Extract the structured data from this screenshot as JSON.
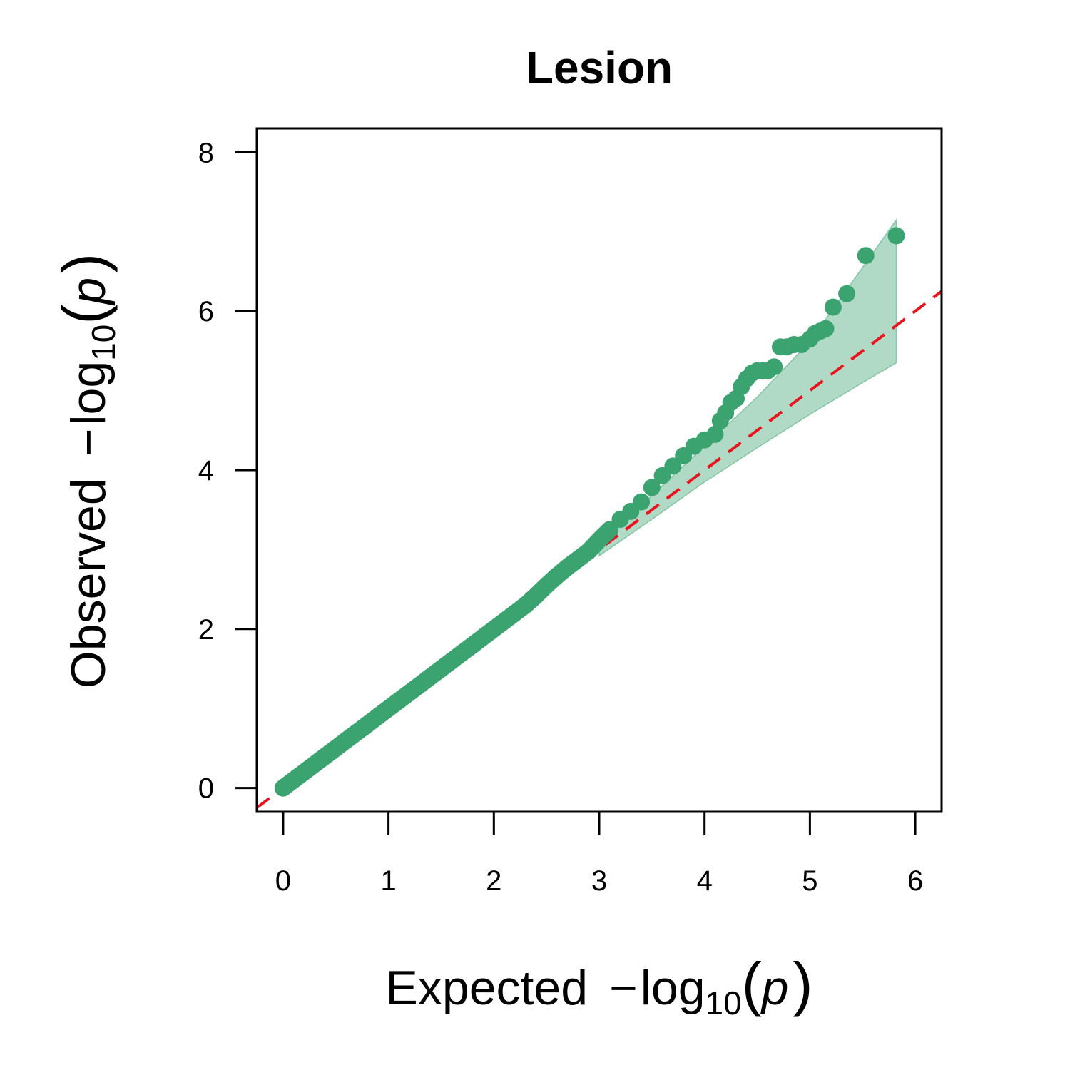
{
  "chart_data": {
    "type": "scatter",
    "title": "Lesion",
    "xlabel": {
      "prefix": "Expected",
      "minus": "−",
      "log": "log",
      "sub": "10",
      "open": "(",
      "var": "p",
      "close": ")"
    },
    "ylabel": {
      "prefix": "Observed",
      "minus": "−",
      "log": "log",
      "sub": "10",
      "open": "(",
      "var": "p",
      "close": ")"
    },
    "xlim": [
      -0.25,
      6.25
    ],
    "ylim": [
      -0.3,
      8.3
    ],
    "x_ticks": [
      0,
      1,
      2,
      3,
      4,
      5,
      6
    ],
    "x_tick_labels": [
      "0",
      "1",
      "2",
      "3",
      "4",
      "5",
      "6"
    ],
    "y_ticks": [
      0,
      2,
      4,
      6,
      8
    ],
    "y_tick_labels": [
      "0",
      "2",
      "4",
      "6",
      "8"
    ],
    "grid": false,
    "point_color": "#3aa36f",
    "band_color": "#3aa36f",
    "reference_line_color": "#e8141e",
    "reference_line": {
      "style": "dashed",
      "slope": 1,
      "intercept": 0
    },
    "confidence_band": {
      "x": [
        3.0,
        3.5,
        4.0,
        4.5,
        5.0,
        5.5,
        5.82
      ],
      "upper": [
        3.1,
        3.68,
        4.3,
        4.92,
        5.62,
        6.55,
        7.15
      ],
      "lower": [
        2.92,
        3.38,
        3.85,
        4.28,
        4.7,
        5.1,
        5.35
      ]
    },
    "series": [
      {
        "points": {
          "x": [
            0.0,
            0.1,
            0.2,
            0.3,
            0.4,
            0.5,
            0.6,
            0.7,
            0.8,
            0.9,
            1.0,
            1.1,
            1.2,
            1.3,
            1.4,
            1.5,
            1.6,
            1.7,
            1.8,
            1.9,
            2.0,
            2.1,
            2.2,
            2.3,
            2.4,
            2.5,
            2.6,
            2.7,
            2.8,
            2.9,
            3.0,
            3.1,
            3.2,
            3.3,
            3.4,
            3.5,
            3.6,
            3.7,
            3.8,
            3.9,
            4.0,
            4.1,
            4.15,
            4.2,
            4.25,
            4.3,
            4.35,
            4.4,
            4.45,
            4.5,
            4.55,
            4.6,
            4.66,
            4.72,
            4.78,
            4.85,
            4.92,
            5.0,
            5.05,
            5.1,
            5.15,
            5.22,
            5.35,
            5.53,
            5.82
          ],
          "y": [
            0.0,
            0.1,
            0.2,
            0.3,
            0.4,
            0.5,
            0.6,
            0.7,
            0.8,
            0.9,
            1.0,
            1.1,
            1.2,
            1.3,
            1.4,
            1.5,
            1.6,
            1.7,
            1.8,
            1.9,
            2.0,
            2.1,
            2.2,
            2.3,
            2.42,
            2.55,
            2.67,
            2.78,
            2.88,
            2.98,
            3.12,
            3.25,
            3.38,
            3.48,
            3.6,
            3.78,
            3.93,
            4.05,
            4.18,
            4.3,
            4.38,
            4.45,
            4.62,
            4.72,
            4.85,
            4.9,
            5.05,
            5.15,
            5.22,
            5.25,
            5.25,
            5.25,
            5.3,
            5.55,
            5.55,
            5.58,
            5.58,
            5.65,
            5.72,
            5.75,
            5.78,
            6.05,
            6.22,
            6.7,
            6.95
          ]
        }
      }
    ]
  }
}
